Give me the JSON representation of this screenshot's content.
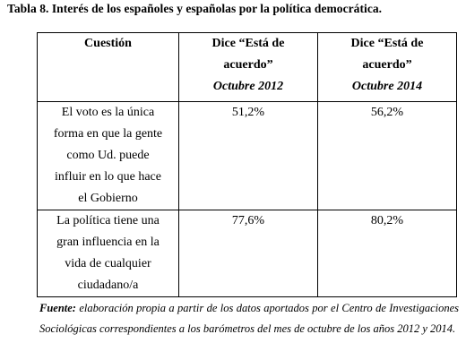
{
  "title": "Tabla 8. Interés de los españoles y españolas por la política democrática.",
  "table": {
    "headers": [
      {
        "line1": "Cuestión",
        "line2": "",
        "line3": ""
      },
      {
        "line1": "Dice “Está de",
        "line2": "acuerdo”",
        "line3": "Octubre 2012"
      },
      {
        "line1": "Dice “Está de",
        "line2": "acuerdo”",
        "line3": "Octubre 2014"
      }
    ],
    "rows": [
      {
        "question_lines": [
          "El voto es la única",
          "forma en que la gente",
          "como Ud. puede",
          "influir en lo que hace",
          "el Gobierno"
        ],
        "oct2012": "51,2%",
        "oct2014": "56,2%"
      },
      {
        "question_lines": [
          "La política tiene una",
          "gran influencia en la",
          "vida de cualquier",
          "ciudadano/a"
        ],
        "oct2012": "77,6%",
        "oct2014": "80,2%"
      }
    ]
  },
  "source": {
    "label": "Fuente:",
    "text": " elaboración propia a partir de los datos aportados por el Centro de Investigaciones Sociológicas correspondientes a los barómetros del mes de octubre de los años 2012 y 2014."
  }
}
